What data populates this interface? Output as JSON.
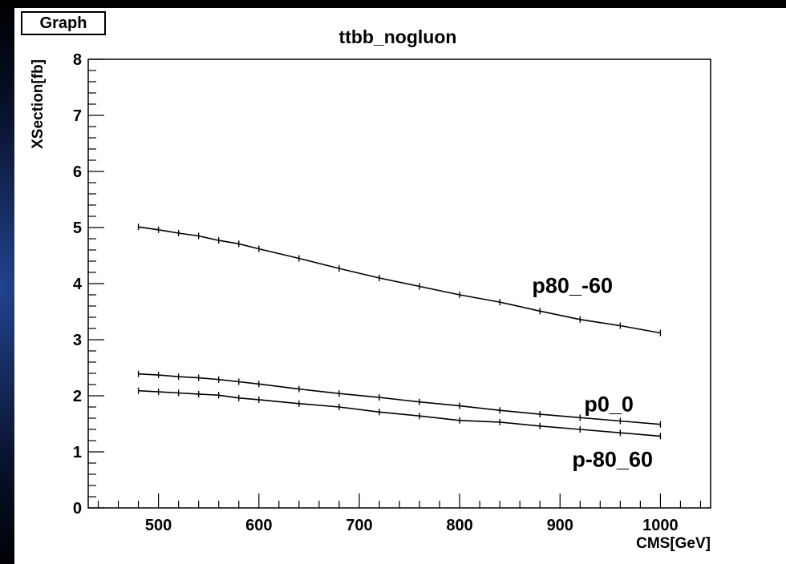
{
  "window": {
    "tab_label": "Graph"
  },
  "chart_data": {
    "type": "line",
    "title": "ttbb_nogluon",
    "xlabel": "CMS[GeV]",
    "ylabel": "XSection[fb]",
    "xlim": [
      430,
      1050
    ],
    "ylim": [
      0,
      8
    ],
    "x_ticks": [
      500,
      600,
      700,
      800,
      900,
      1000
    ],
    "y_ticks": [
      0,
      1,
      2,
      3,
      4,
      5,
      6,
      7,
      8
    ],
    "grid": false,
    "legend": "none",
    "x": [
      480,
      500,
      520,
      540,
      560,
      580,
      600,
      640,
      680,
      720,
      760,
      800,
      840,
      880,
      920,
      960,
      1000
    ],
    "series": [
      {
        "name": "p80_-60",
        "values": [
          5.01,
          4.96,
          4.9,
          4.85,
          4.77,
          4.71,
          4.62,
          4.45,
          4.27,
          4.1,
          3.95,
          3.8,
          3.67,
          3.51,
          3.36,
          3.25,
          3.12
        ]
      },
      {
        "name": "p0_0",
        "values": [
          2.39,
          2.37,
          2.34,
          2.32,
          2.29,
          2.25,
          2.21,
          2.12,
          2.04,
          1.97,
          1.89,
          1.82,
          1.74,
          1.67,
          1.61,
          1.55,
          1.49
        ]
      },
      {
        "name": "p-80_60",
        "values": [
          2.09,
          2.07,
          2.05,
          2.03,
          2.01,
          1.96,
          1.93,
          1.86,
          1.8,
          1.71,
          1.64,
          1.56,
          1.53,
          1.46,
          1.4,
          1.34,
          1.28
        ]
      }
    ]
  }
}
